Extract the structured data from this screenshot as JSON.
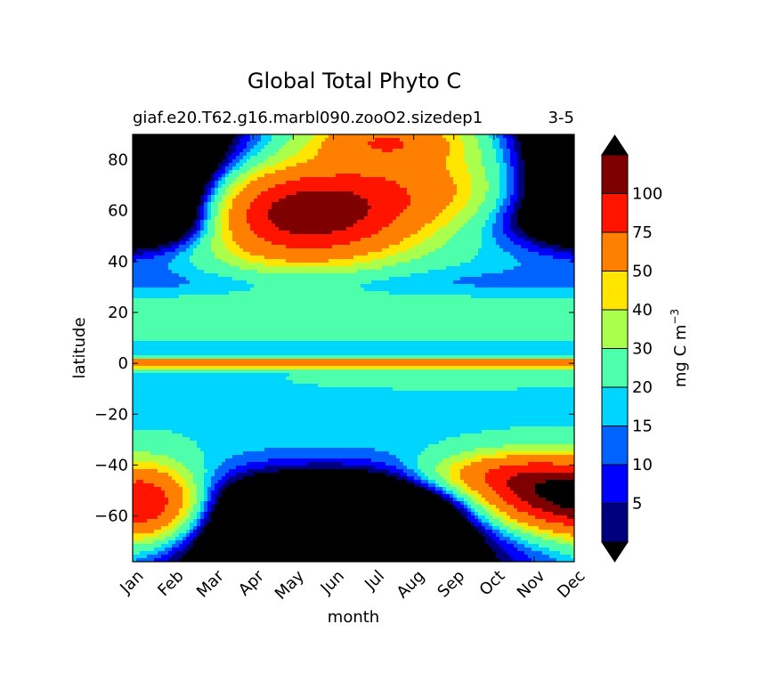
{
  "chart_data": {
    "type": "heatmap",
    "title": "Global Total Phyto C",
    "subtitle_left": "giaf.e20.T62.g16.marbl090.zooO2.sizedep1",
    "subtitle_right": "3-5",
    "xlabel": "month",
    "ylabel": "latitude",
    "x_categories": [
      "Jan",
      "Feb",
      "Mar",
      "Apr",
      "May",
      "Jun",
      "Jul",
      "Aug",
      "Sep",
      "Oct",
      "Nov",
      "Dec"
    ],
    "y_ticks": [
      "80",
      "60",
      "40",
      "20",
      "0",
      "−20",
      "−40",
      "−60"
    ],
    "y_tick_values": [
      80,
      60,
      40,
      20,
      0,
      -20,
      -40,
      -60
    ],
    "ylim": [
      -78,
      90
    ],
    "colorbar": {
      "label_main": "mg C m",
      "label_exp": "−3",
      "levels": [
        0,
        5,
        10,
        15,
        20,
        30,
        40,
        50,
        75,
        100,
        125
      ],
      "tick_labels": [
        "5",
        "10",
        "15",
        "20",
        "30",
        "40",
        "50",
        "75",
        "100"
      ],
      "colors": [
        "#00007f",
        "#0000ff",
        "#0063ff",
        "#00d5ff",
        "#4dffaa",
        "#aaff4d",
        "#ffe500",
        "#ff7f00",
        "#ff1400",
        "#7f0000"
      ],
      "extend_low_color": "#000000",
      "extend_high_color": "#000000"
    }
  }
}
